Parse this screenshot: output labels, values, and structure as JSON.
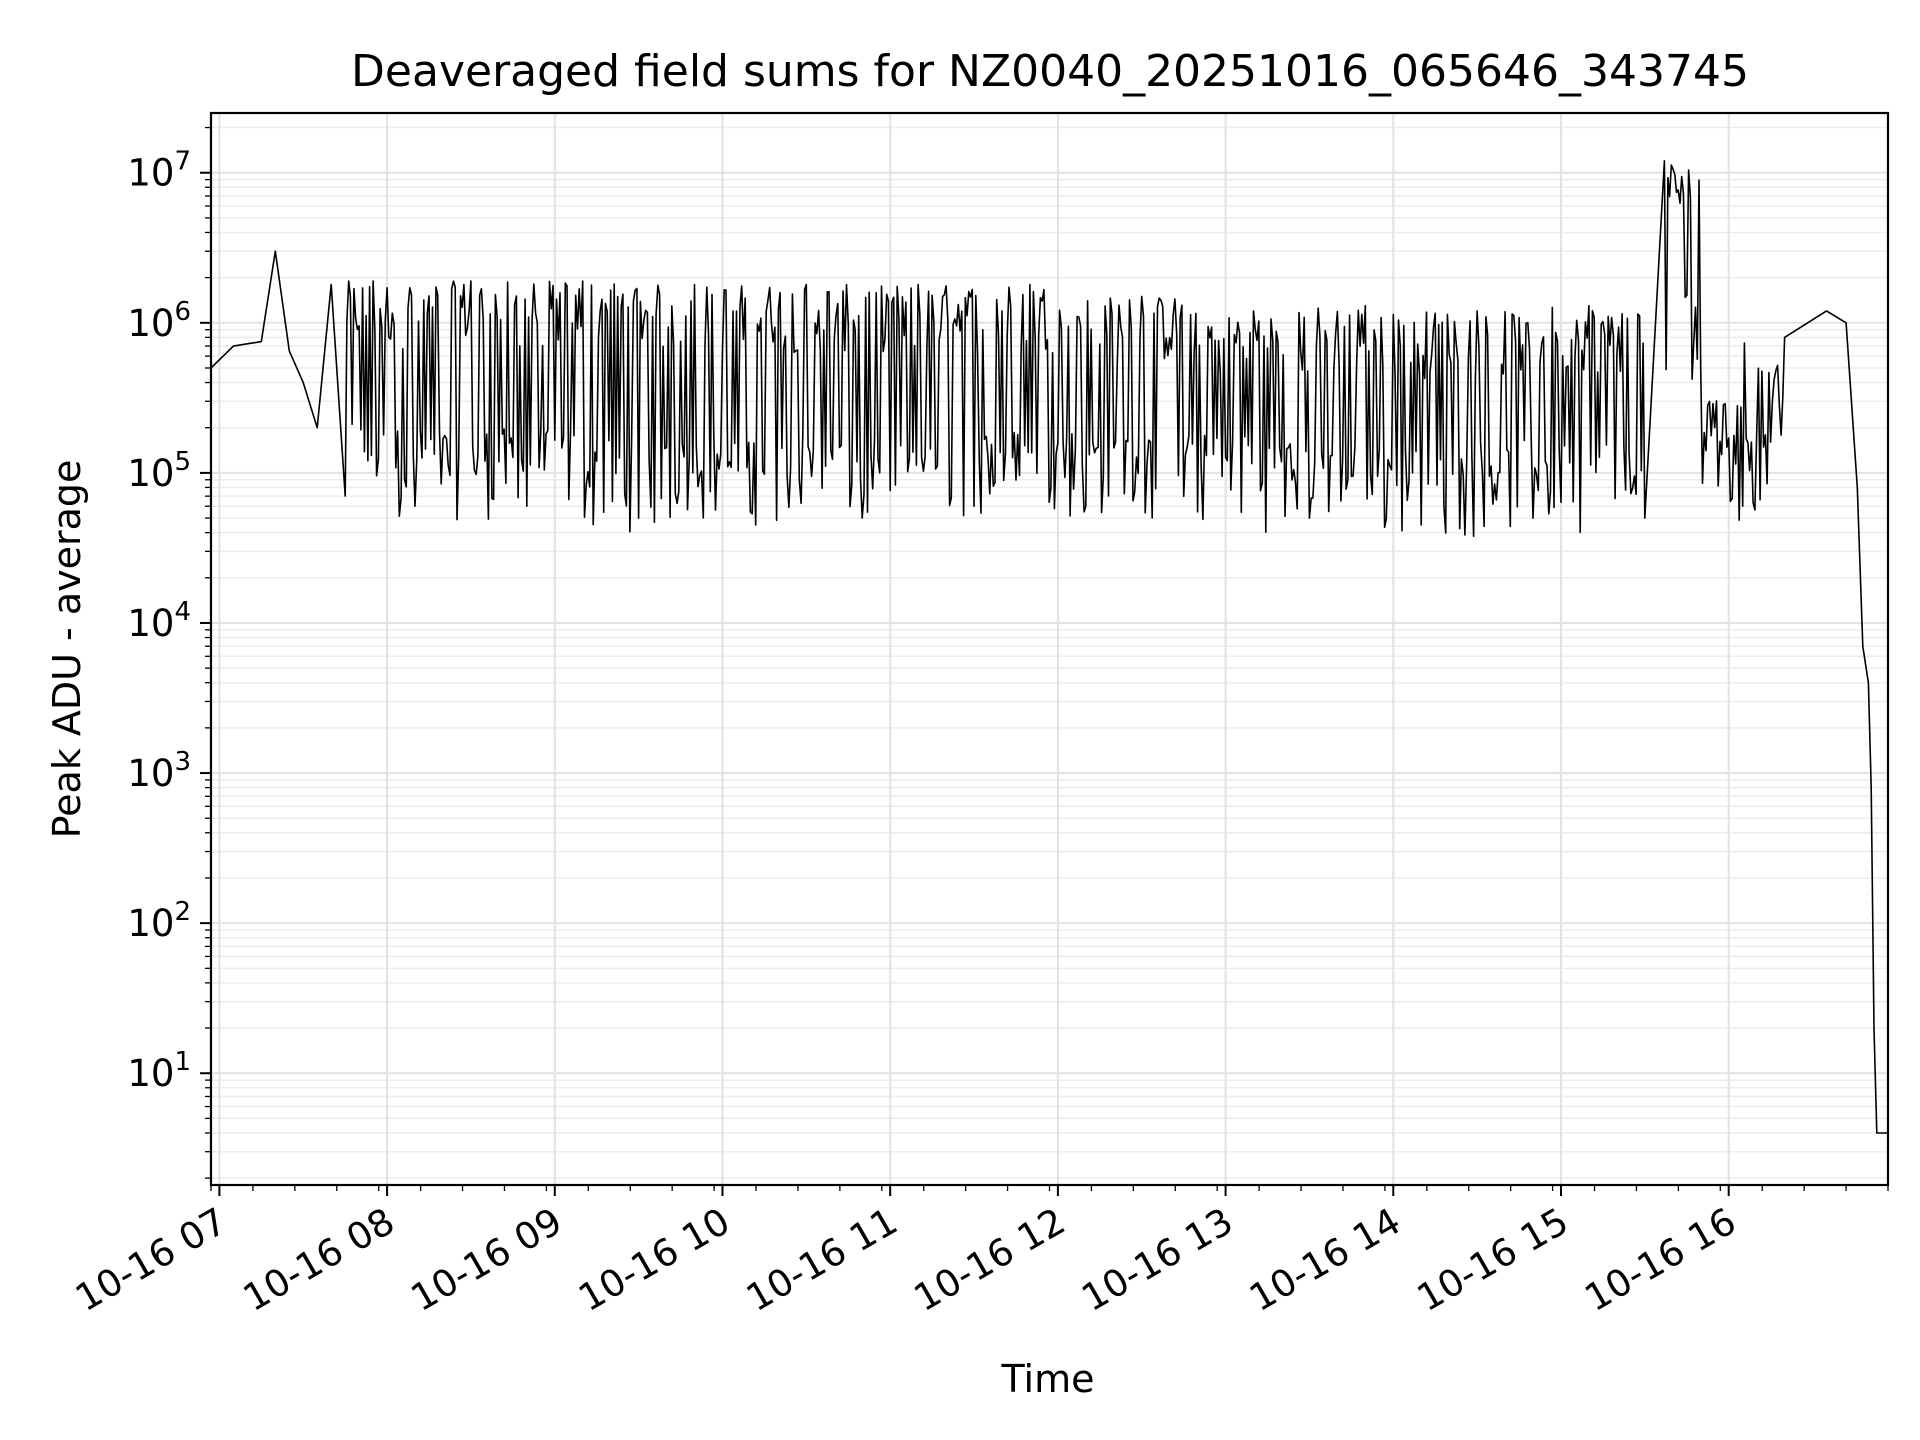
{
  "chart_data": {
    "type": "line",
    "title": "Deaveraged field sums for NZ0040_20251016_065646_343745",
    "xlabel": "Time",
    "ylabel": "Peak ADU - average",
    "yscale": "log",
    "grid": "major and minor",
    "line_color": "#000000",
    "x_ticks": [
      "10-16 07",
      "10-16 08",
      "10-16 09",
      "10-16 10",
      "10-16 11",
      "10-16 12",
      "10-16 13",
      "10-16 14",
      "10-16 15",
      "10-16 16"
    ],
    "y_ticks": [
      {
        "base": "10",
        "exp": "1",
        "value": 10
      },
      {
        "base": "10",
        "exp": "2",
        "value": 100
      },
      {
        "base": "10",
        "exp": "3",
        "value": 1000
      },
      {
        "base": "10",
        "exp": "4",
        "value": 10000
      },
      {
        "base": "10",
        "exp": "5",
        "value": 100000
      },
      {
        "base": "10",
        "exp": "6",
        "value": 1000000
      },
      {
        "base": "10",
        "exp": "7",
        "value": 10000000
      }
    ],
    "xlim": [
      "2025-10-16 06:57",
      "2025-10-16 16:57"
    ],
    "ylim": [
      1.8,
      25000000
    ],
    "series": [
      {
        "x": [
          "2025-10-16 06:57",
          "2025-10-16 07:05",
          "2025-10-16 07:15",
          "2025-10-16 07:20",
          "2025-10-16 07:25",
          "2025-10-16 07:30",
          "2025-10-16 07:35",
          "2025-10-16 07:40",
          "2025-10-16 07:45",
          "2025-10-16 07:55",
          "2025-10-16 08:10",
          "2025-10-16 08:30",
          "2025-10-16 08:50",
          "2025-10-16 09:10",
          "2025-10-16 09:30",
          "2025-10-16 09:50",
          "2025-10-16 10:10",
          "2025-10-16 10:30",
          "2025-10-16 10:50",
          "2025-10-16 11:10",
          "2025-10-16 11:30",
          "2025-10-16 11:50",
          "2025-10-16 12:10",
          "2025-10-16 12:30",
          "2025-10-16 12:50",
          "2025-10-16 13:10",
          "2025-10-16 13:30",
          "2025-10-16 13:50",
          "2025-10-16 14:10",
          "2025-10-16 14:30",
          "2025-10-16 14:50",
          "2025-10-16 15:10",
          "2025-10-16 15:30",
          "2025-10-16 15:37",
          "2025-10-16 15:50",
          "2025-10-16 16:05",
          "2025-10-16 16:20",
          "2025-10-16 16:35",
          "2025-10-16 16:42",
          "2025-10-16 16:46",
          "2025-10-16 16:48",
          "2025-10-16 16:50",
          "2025-10-16 16:51",
          "2025-10-16 16:52",
          "2025-10-16 16:53",
          "2025-10-16 16:55",
          "2025-10-16 16:57"
        ],
        "y": [
          500000,
          700000,
          750000,
          3000000,
          650000,
          400000,
          200000,
          1800000,
          70000,
          1900000,
          60000,
          1900000,
          60000,
          1900000,
          50000,
          1800000,
          55000,
          1800000,
          50000,
          1800000,
          60000,
          1800000,
          60000,
          1500000,
          55000,
          1200000,
          50000,
          1300000,
          45000,
          1200000,
          50000,
          1300000,
          50000,
          12000000,
          500000,
          60000,
          800000,
          1200000,
          1000000,
          80000,
          7000,
          4000,
          800,
          20,
          4,
          4,
          4
        ]
      }
    ]
  }
}
